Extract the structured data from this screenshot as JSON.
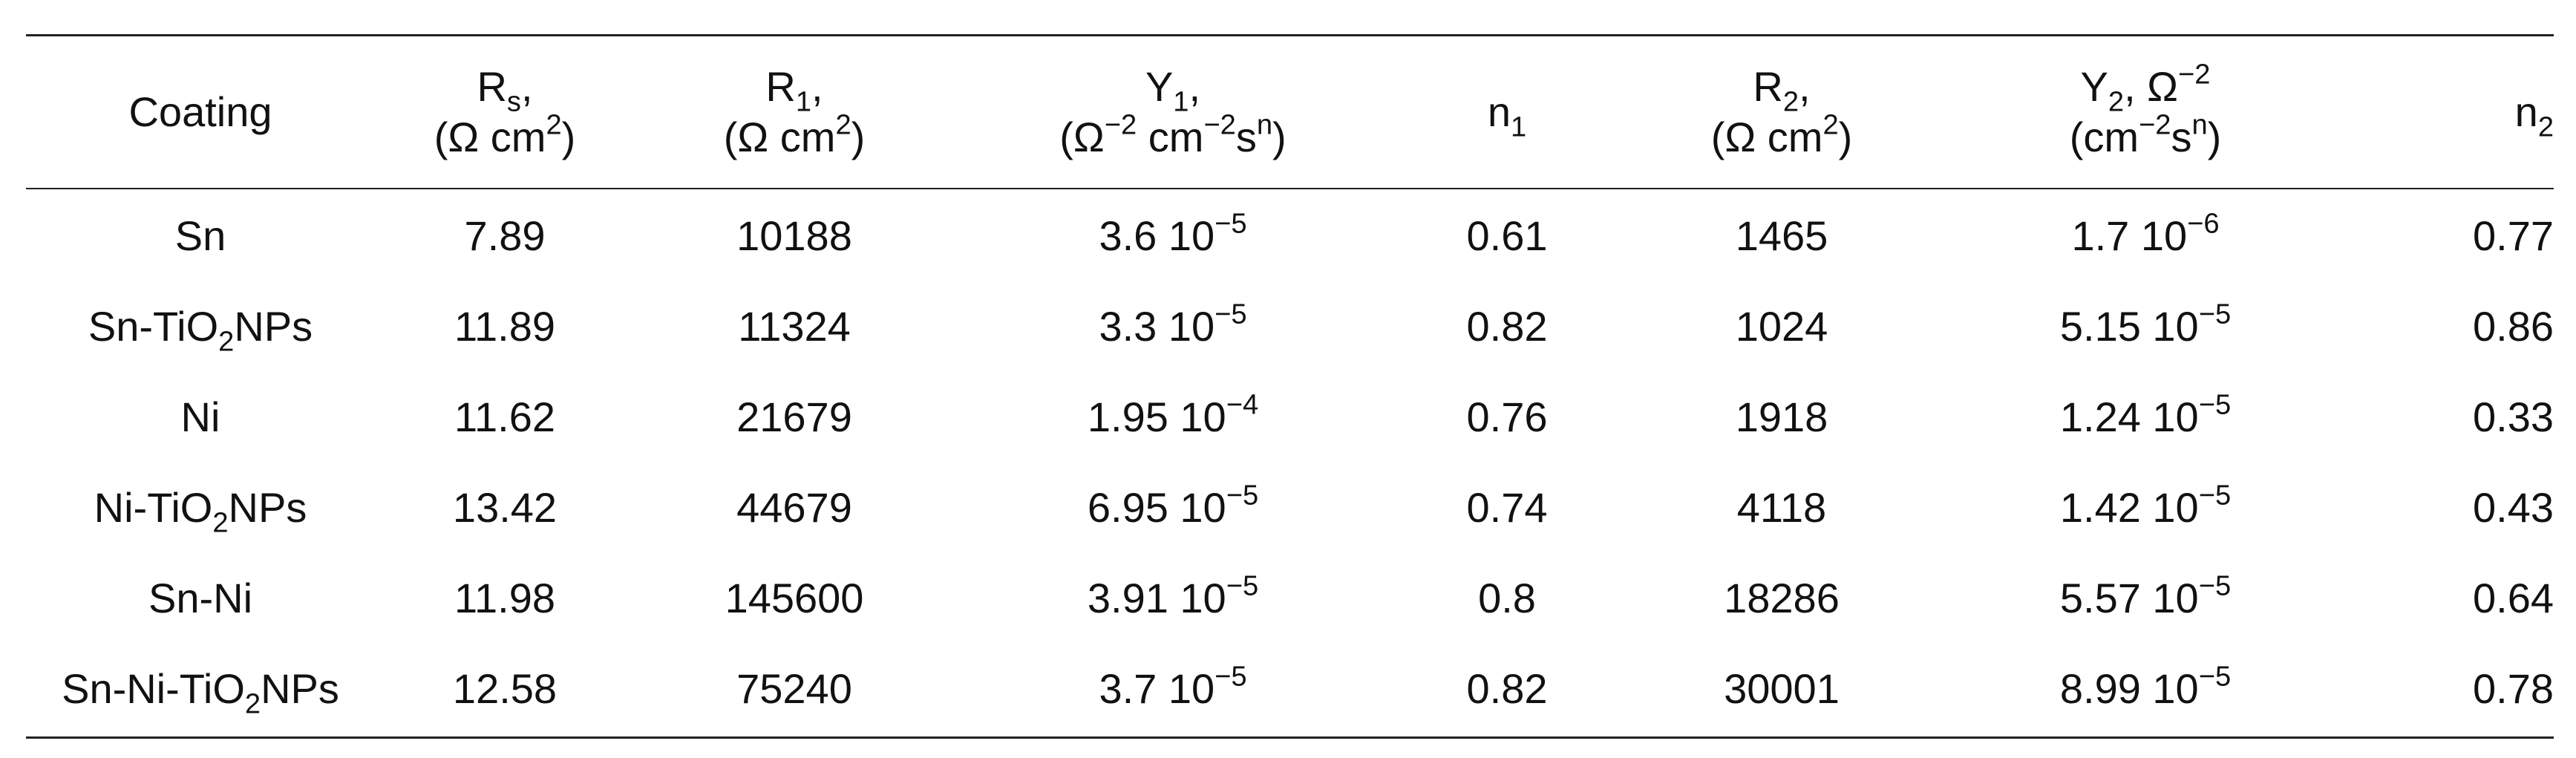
{
  "table": {
    "headers": {
      "coating": "Coating",
      "rs": {
        "sym": "R",
        "sub": "s",
        "after": ",",
        "unit_pre": "(Ω cm",
        "unit_sup": "2",
        "unit_post": ")"
      },
      "r1": {
        "sym": "R",
        "sub": "1",
        "after": ",",
        "unit_pre": "(Ω cm",
        "unit_sup": "2",
        "unit_post": ")"
      },
      "y1": {
        "sym": "Y",
        "sub": "1",
        "after": ",",
        "unit_open": "(Ω",
        "sup_a": "−2",
        "mid_a": " cm",
        "sup_b": "−2",
        "mid_b": "s",
        "sup_c": "n",
        "unit_close": ")"
      },
      "n1": {
        "sym": "n",
        "sub": "1"
      },
      "r2": {
        "sym": "R",
        "sub": "2",
        "after": ",",
        "unit_pre": "(Ω cm",
        "unit_sup": "2",
        "unit_post": ")"
      },
      "y2": {
        "sym": "Y",
        "sub": "2",
        "after": ", Ω",
        "sup_a": "−2",
        "unit_open": "(cm",
        "sup_b": "−2",
        "mid_b": "s",
        "sup_c": "n",
        "unit_close": ")"
      },
      "n2": {
        "sym": "n",
        "sub": "2"
      }
    },
    "rows": [
      {
        "coating": {
          "pre": "Sn",
          "sub": "",
          "post": ""
        },
        "rs": "7.89",
        "r1": "10188",
        "y1": {
          "mant": "3.6 10",
          "exp": "−5"
        },
        "n1": "0.61",
        "r2": "1465",
        "y2": {
          "mant": "1.7 10",
          "exp": "−6"
        },
        "n2": "0.77"
      },
      {
        "coating": {
          "pre": "Sn-TiO",
          "sub": "2",
          "post": "NPs"
        },
        "rs": "11.89",
        "r1": "11324",
        "y1": {
          "mant": "3.3 10",
          "exp": "−5"
        },
        "n1": "0.82",
        "r2": "1024",
        "y2": {
          "mant": "5.15 10",
          "exp": "−5"
        },
        "n2": "0.86"
      },
      {
        "coating": {
          "pre": "Ni",
          "sub": "",
          "post": ""
        },
        "rs": "11.62",
        "r1": "21679",
        "y1": {
          "mant": "1.95 10",
          "exp": "−4"
        },
        "n1": "0.76",
        "r2": "1918",
        "y2": {
          "mant": "1.24 10",
          "exp": "−5"
        },
        "n2": "0.33"
      },
      {
        "coating": {
          "pre": "Ni-TiO",
          "sub": "2",
          "post": "NPs"
        },
        "rs": "13.42",
        "r1": "44679",
        "y1": {
          "mant": "6.95 10",
          "exp": "−5"
        },
        "n1": "0.74",
        "r2": "4118",
        "y2": {
          "mant": "1.42 10",
          "exp": "−5"
        },
        "n2": "0.43"
      },
      {
        "coating": {
          "pre": "Sn-Ni",
          "sub": "",
          "post": ""
        },
        "rs": "11.98",
        "r1": "145600",
        "y1": {
          "mant": "3.91 10",
          "exp": "−5"
        },
        "n1": "0.8",
        "r2": "18286",
        "y2": {
          "mant": "5.57 10",
          "exp": "−5"
        },
        "n2": "0.64"
      },
      {
        "coating": {
          "pre": "Sn-Ni-TiO",
          "sub": "2",
          "post": "NPs"
        },
        "rs": "12.58",
        "r1": "75240",
        "y1": {
          "mant": "3.7 10",
          "exp": "−5"
        },
        "n1": "0.82",
        "r2": "30001",
        "y2": {
          "mant": "8.99 10",
          "exp": "−5"
        },
        "n2": "0.78"
      }
    ]
  }
}
